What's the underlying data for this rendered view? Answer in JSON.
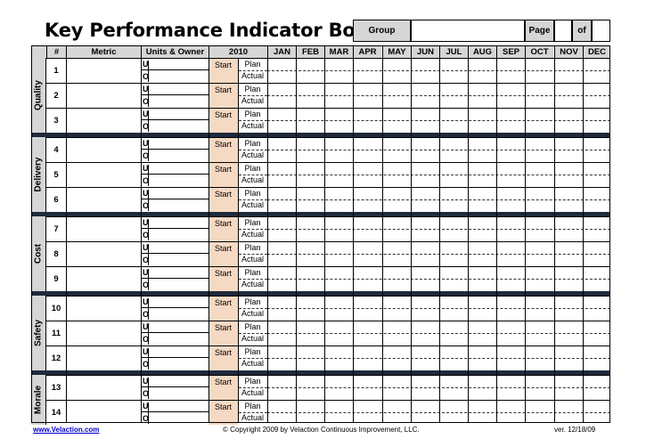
{
  "title": "Key Performance Indicator Bowler",
  "header": {
    "group_label": "Group",
    "page_label": "Page",
    "of_label": "of"
  },
  "columns": {
    "num": "#",
    "metric": "Metric",
    "units_owner": "Units & Owner",
    "year": "2010",
    "months": [
      "JAN",
      "FEB",
      "MAR",
      "APR",
      "MAY",
      "JUN",
      "JUL",
      "AUG",
      "SEP",
      "OCT",
      "NOV",
      "DEC"
    ]
  },
  "categories": [
    "Quality",
    "Delivery",
    "Cost",
    "Safety",
    "Morale"
  ],
  "rows": [
    "1",
    "2",
    "3",
    "4",
    "5",
    "6",
    "7",
    "8",
    "9",
    "10",
    "11",
    "12",
    "13",
    "14"
  ],
  "row_labels": {
    "units": "U",
    "owner": "O",
    "start": "Start",
    "plan": "Plan",
    "actual": "Actual"
  },
  "footer": {
    "website": "www.Velaction.com",
    "copyright": "© Copyright 2009 by Velaction Continuous Improvement, LLC.",
    "version": "ver. 12/18/09"
  },
  "colors": {
    "header_gray": "#d6d6d6",
    "start_fill": "#f6d9c3",
    "separator": "#1f2a3c",
    "link": "#0000cc"
  }
}
